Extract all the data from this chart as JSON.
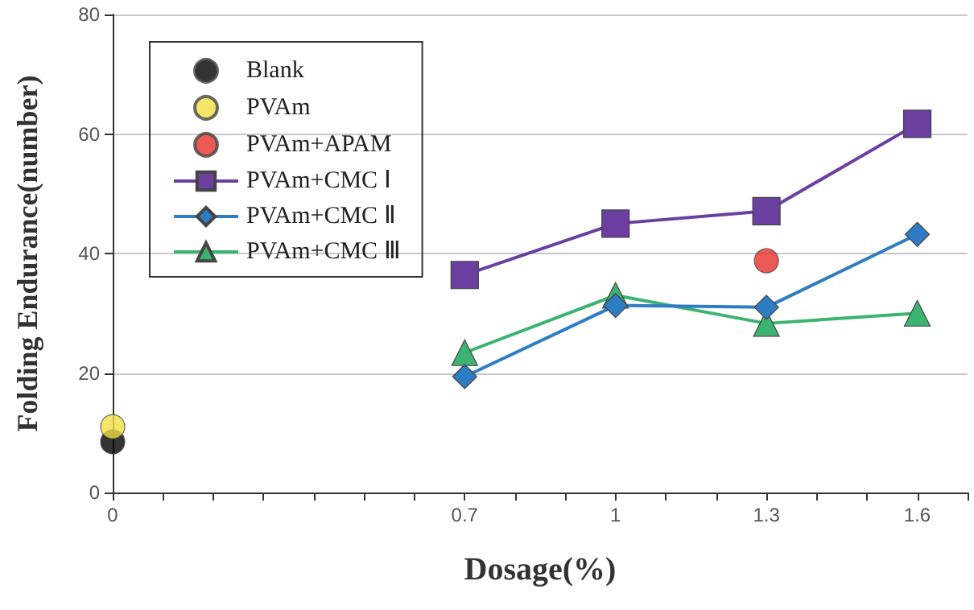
{
  "chart_data": {
    "type": "line",
    "xlabel": "Dosage(%)",
    "ylabel": "Folding Endurance(number)",
    "xlim": [
      0,
      1.7
    ],
    "ylim": [
      0,
      80
    ],
    "xticks": [
      0,
      {
        "value": 0.1,
        "label": null
      },
      {
        "value": 0.2,
        "label": null
      },
      {
        "value": 0.3,
        "label": null
      },
      {
        "value": 0.4,
        "label": null
      },
      {
        "value": 0.5,
        "label": null
      },
      {
        "value": 0.6,
        "label": null
      },
      0.7,
      {
        "value": 0.8,
        "label": null
      },
      {
        "value": 0.9,
        "label": null
      },
      1,
      {
        "value": 1.1,
        "label": null
      },
      {
        "value": 1.2,
        "label": null
      },
      1.3,
      {
        "value": 1.4,
        "label": null
      },
      {
        "value": 1.5,
        "label": null
      },
      1.6,
      {
        "value": 1.7,
        "label": null
      }
    ],
    "yticks": [
      0,
      20,
      40,
      60,
      80
    ],
    "grid": "y",
    "legend": "top left",
    "series": [
      {
        "name": "Blank",
        "type": "scatter",
        "marker": "circle",
        "color": "#000000",
        "x": [
          0
        ],
        "values": [
          8.5
        ]
      },
      {
        "name": "PVAm",
        "type": "scatter",
        "marker": "circle",
        "color": "#f0e040",
        "x": [
          0
        ],
        "values": [
          11
        ]
      },
      {
        "name": "PVAm+APAM",
        "type": "scatter",
        "marker": "circle",
        "color": "#e8302a",
        "x": [
          1.3
        ],
        "values": [
          38.8
        ]
      },
      {
        "name": "PVAm+CMC Ⅰ",
        "marker": "square",
        "color": "#6a3fa0",
        "x": [
          0.7,
          1,
          1.3,
          1.6
        ],
        "values": [
          36.4,
          45,
          47.1,
          61.7
        ]
      },
      {
        "name": "PVAm+CMC Ⅱ",
        "marker": "diamond",
        "color": "#2e7cc4",
        "x": [
          0.7,
          1,
          1.3,
          1.6
        ],
        "values": [
          19.4,
          31.3,
          31,
          43.2
        ]
      },
      {
        "name": "PVAm+CMC Ⅲ",
        "marker": "triangle",
        "color": "#3cb371",
        "x": [
          0.7,
          1,
          1.3,
          1.6
        ],
        "values": [
          23.4,
          33,
          28.3,
          30
        ]
      }
    ]
  }
}
